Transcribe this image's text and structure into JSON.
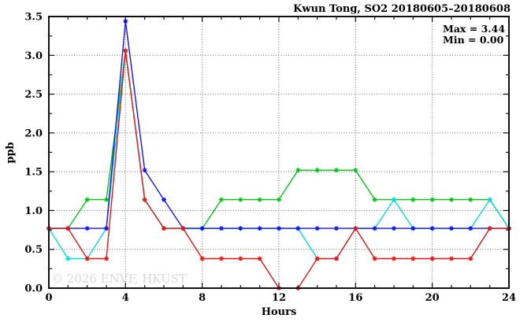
{
  "header": {
    "title": "Kwun Tong, SO2 20180605–20180608"
  },
  "stats_box": {
    "max_label": "Max = 3.44",
    "min_label": "Min = 0.00"
  },
  "watermark": "© 2026 ENVF, HKUST",
  "chart_data": {
    "type": "line",
    "title": "Kwun Tong, SO2 20180605–20180608",
    "xlabel": "Hours",
    "ylabel": "ppb",
    "xlim": [
      0,
      24
    ],
    "ylim": [
      0,
      3.5
    ],
    "xticks_major": [
      0,
      4,
      8,
      12,
      16,
      20,
      24
    ],
    "xtick_minor_step": 1,
    "yticks_major": [
      0.0,
      0.5,
      1.0,
      1.5,
      2.0,
      2.5,
      3.0,
      3.5
    ],
    "ytick_minor_step": 0.25,
    "grid": "dotted-at-major-ticks",
    "legend": "none",
    "max": 3.44,
    "min": 0.0,
    "x": [
      0,
      1,
      2,
      3,
      4,
      5,
      6,
      7,
      8,
      9,
      10,
      11,
      12,
      13,
      14,
      15,
      16,
      17,
      18,
      19,
      20,
      21,
      22,
      23,
      24
    ],
    "series": [
      {
        "name": "series-green",
        "color": "#00c414",
        "values": [
          0.77,
          0.77,
          1.14,
          1.14,
          3.06,
          1.14,
          0.77,
          0.77,
          0.77,
          1.14,
          1.14,
          1.14,
          1.14,
          1.52,
          1.52,
          1.52,
          1.52,
          1.14,
          1.14,
          1.14,
          1.14,
          1.14,
          1.14,
          1.14,
          0.77
        ]
      },
      {
        "name": "series-cyan",
        "color": "#00dde4",
        "values": [
          0.77,
          0.38,
          0.38,
          0.77,
          3.06,
          1.14,
          0.77,
          0.77,
          0.77,
          0.77,
          0.77,
          0.77,
          0.77,
          0.77,
          0.38,
          0.38,
          0.77,
          0.77,
          1.14,
          0.77,
          0.77,
          0.77,
          0.77,
          1.14,
          0.77
        ]
      },
      {
        "name": "series-blue",
        "color": "#1414ee",
        "values": [
          0.77,
          0.77,
          0.77,
          0.77,
          3.44,
          1.52,
          1.14,
          0.77,
          0.77,
          0.77,
          0.77,
          0.77,
          0.77,
          0.77,
          0.77,
          0.77,
          0.77,
          0.77,
          0.77,
          0.77,
          0.77,
          0.77,
          0.77,
          0.77,
          0.77
        ]
      },
      {
        "name": "series-red",
        "color": "#ee1414",
        "values": [
          0.77,
          0.77,
          0.38,
          0.38,
          3.06,
          1.14,
          0.77,
          0.77,
          0.38,
          0.38,
          0.38,
          0.38,
          0.0,
          0.0,
          0.38,
          0.38,
          0.77,
          0.38,
          0.38,
          0.38,
          0.38,
          0.38,
          0.38,
          0.77,
          0.77
        ]
      }
    ]
  },
  "colors": {
    "axis": "#111111",
    "grid": "#666666",
    "watermark": "#d9d9d9",
    "background": "#ffffff"
  }
}
